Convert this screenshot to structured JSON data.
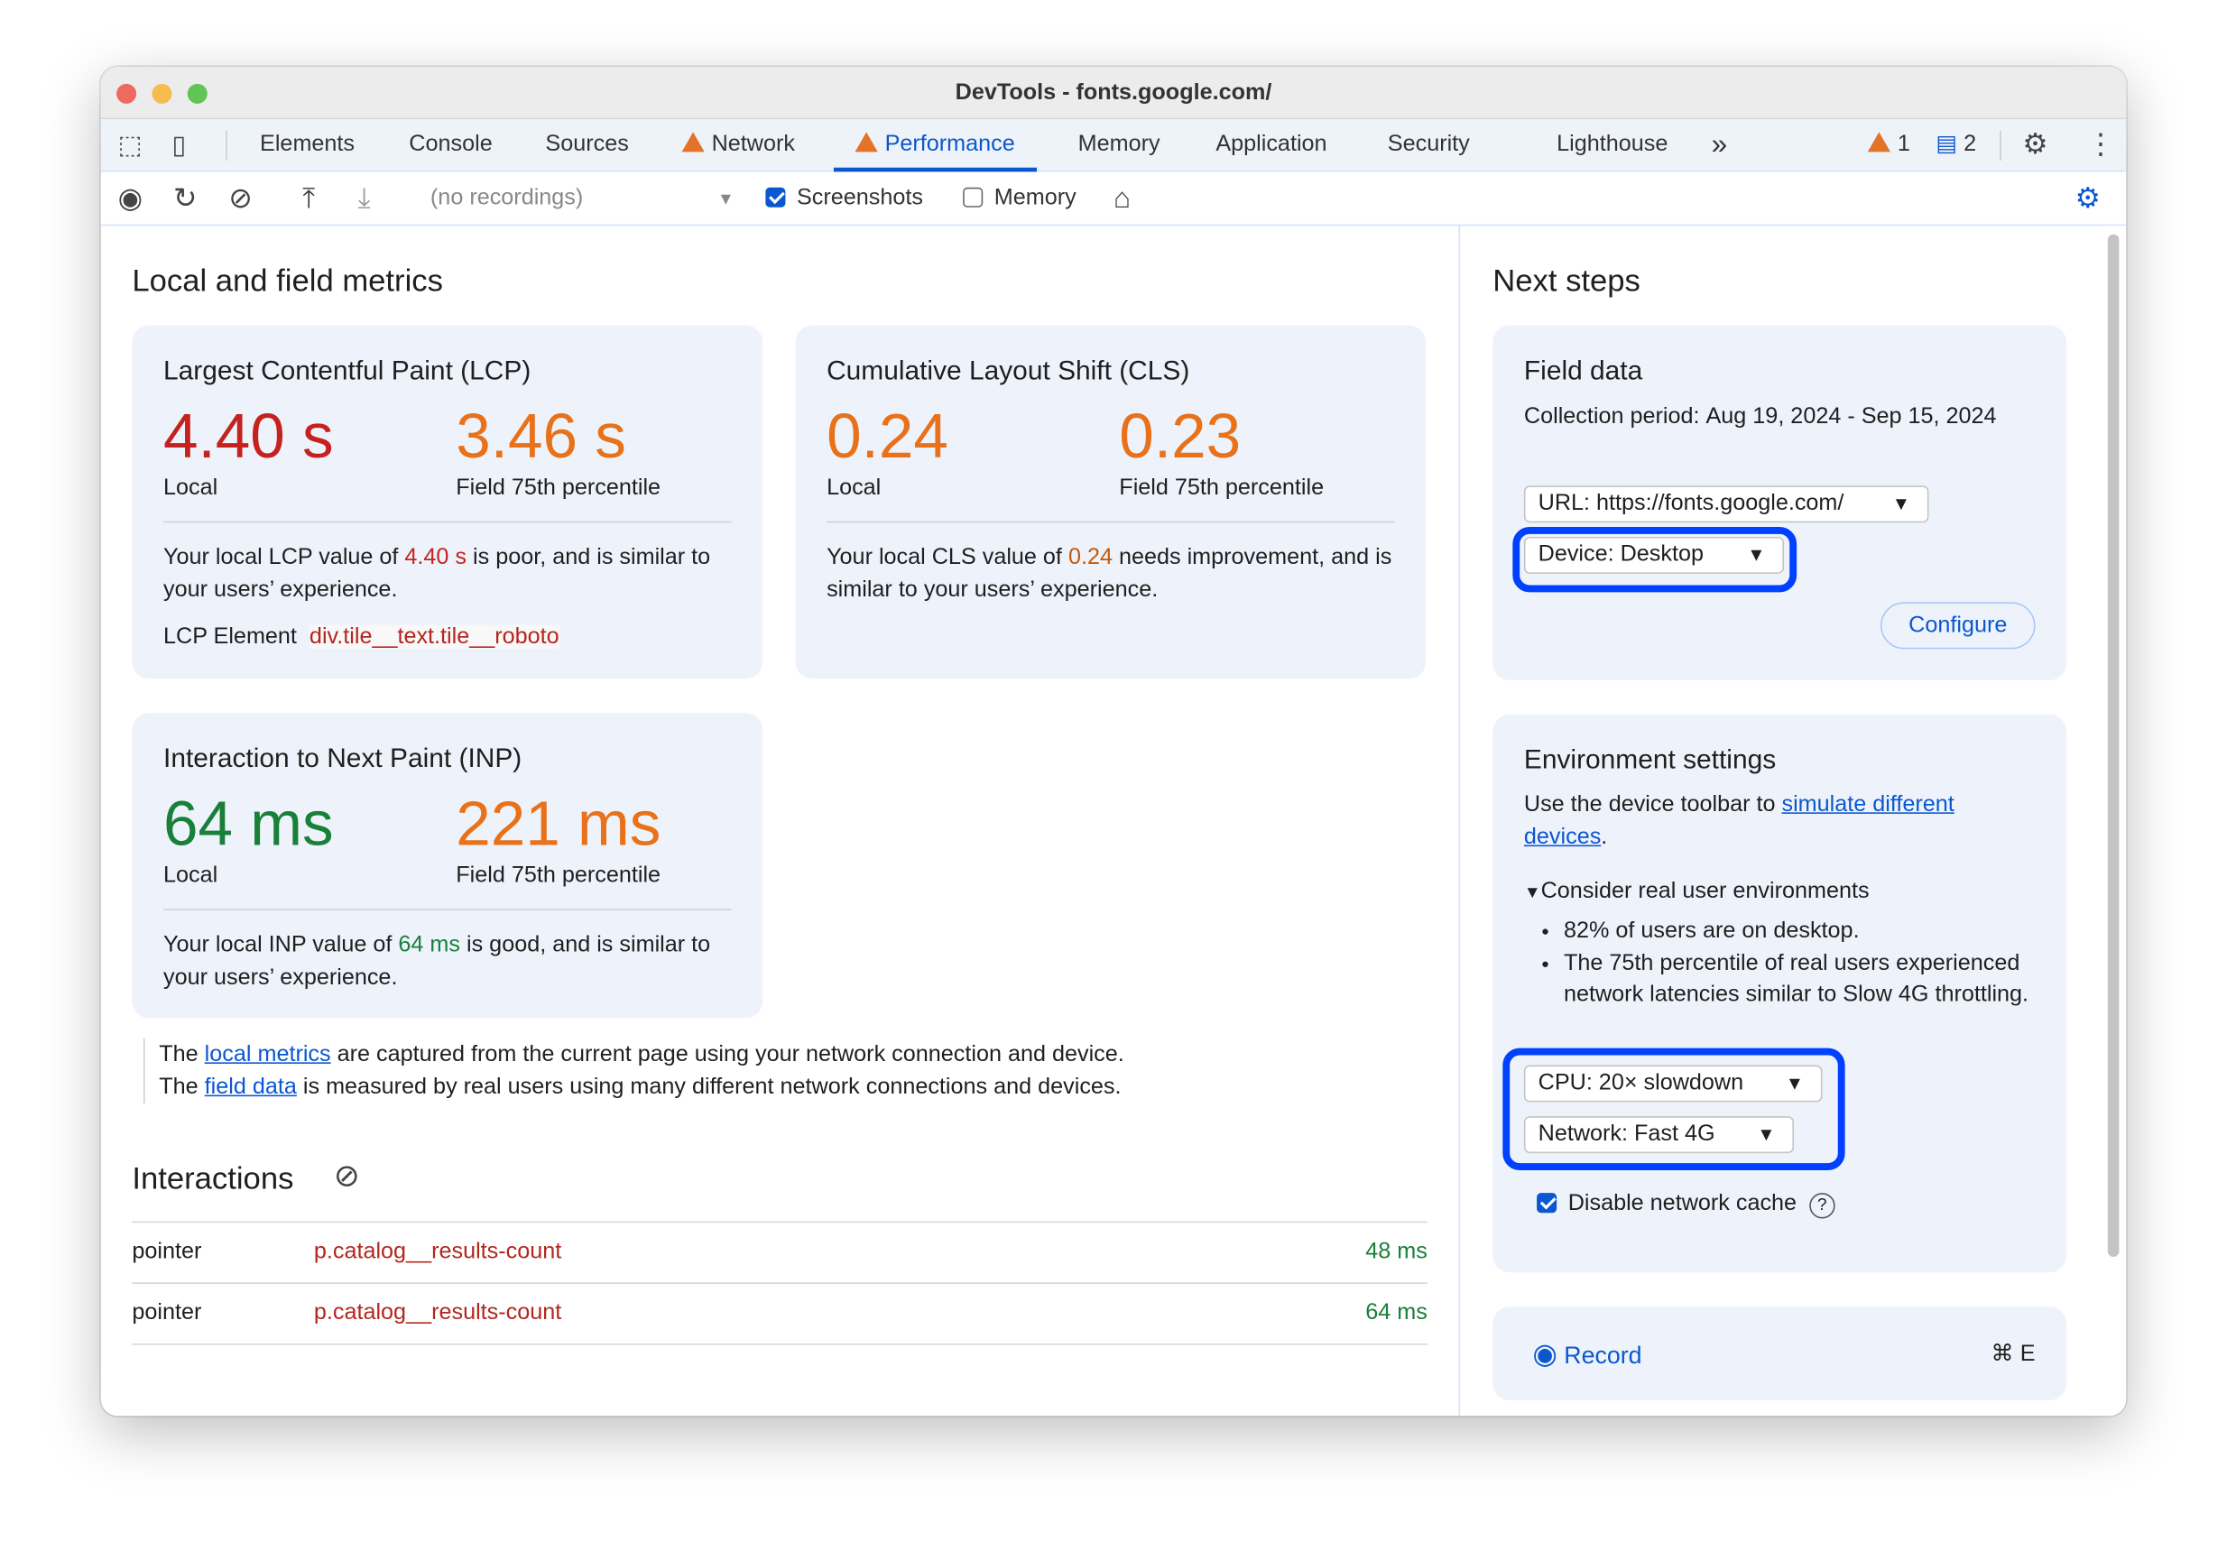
{
  "window": {
    "title": "DevTools - fonts.google.com/"
  },
  "tabs": [
    {
      "label": "Elements"
    },
    {
      "label": "Console"
    },
    {
      "label": "Sources"
    },
    {
      "label": "Network",
      "warning": true
    },
    {
      "label": "Performance",
      "warning": true,
      "active": true
    },
    {
      "label": "Memory"
    },
    {
      "label": "Application"
    },
    {
      "label": "Security"
    },
    {
      "label": "Lighthouse"
    }
  ],
  "status": {
    "warnings": "1",
    "messages": "2"
  },
  "toolbar": {
    "recordings": "(no recordings)",
    "screenshots_label": "Screenshots",
    "screenshots_checked": true,
    "memory_label": "Memory",
    "memory_checked": false
  },
  "left": {
    "title": "Local and field metrics",
    "lcp": {
      "title": "Largest Contentful Paint (LCP)",
      "local": "4.40 s",
      "field": "3.46 s",
      "local_label": "Local",
      "field_label": "Field 75th percentile",
      "desc_pre": "Your local LCP value of ",
      "desc_val": "4.40 s",
      "desc_post": " is poor, and is similar to your users’ experience.",
      "element_label": "LCP Element",
      "element_value": "div.tile__text.tile__roboto"
    },
    "cls": {
      "title": "Cumulative Layout Shift (CLS)",
      "local": "0.24",
      "field": "0.23",
      "local_label": "Local",
      "field_label": "Field 75th percentile",
      "desc_pre": "Your local CLS value of ",
      "desc_val": "0.24",
      "desc_post": " needs improvement, and is similar to your users’ experience."
    },
    "inp": {
      "title": "Interaction to Next Paint (INP)",
      "local": "64 ms",
      "field": "221 ms",
      "local_label": "Local",
      "field_label": "Field 75th percentile",
      "desc_pre": "Your local INP value of ",
      "desc_val": "64 ms",
      "desc_post": " is good, and is similar to your users’ experience."
    },
    "note": {
      "l1_pre": "The ",
      "l1_link": "local metrics",
      "l1_post": " are captured from the current page using your network connection and device.",
      "l2_pre": "The ",
      "l2_link": "field data",
      "l2_post": " is measured by real users using many different network connections and devices."
    },
    "interactions": {
      "title": "Interactions",
      "rows": [
        {
          "type": "pointer",
          "target": "p.catalog__results-count",
          "time": "48 ms"
        },
        {
          "type": "pointer",
          "target": "p.catalog__results-count",
          "time": "64 ms"
        }
      ]
    }
  },
  "right": {
    "title": "Next steps",
    "field": {
      "title": "Field data",
      "period_label": "Collection period: ",
      "period_value": "Aug 19, 2024 - Sep 15, 2024",
      "url_select": "URL: https://fonts.google.com/",
      "device_select": "Device: Desktop",
      "configure": "Configure"
    },
    "env": {
      "title": "Environment settings",
      "desc_pre": "Use the device toolbar to ",
      "desc_link": "simulate different devices",
      "desc_post": ".",
      "details": "Consider real user environments",
      "bullets": [
        "82% of users are on desktop.",
        "The 75th percentile of real users experienced network latencies similar to Slow 4G throttling."
      ],
      "cpu_select": "CPU: 20× slowdown",
      "network_select": "Network: Fast 4G",
      "cache_label": "Disable network cache",
      "cache_checked": true
    },
    "record": {
      "label": "Record",
      "shortcut": "⌘ E"
    }
  },
  "colors": {
    "accent": "#0b57d0",
    "poor": "#c5221f",
    "needs_improvement": "#e8711a",
    "good": "#188038",
    "highlight": "#0040ff"
  }
}
